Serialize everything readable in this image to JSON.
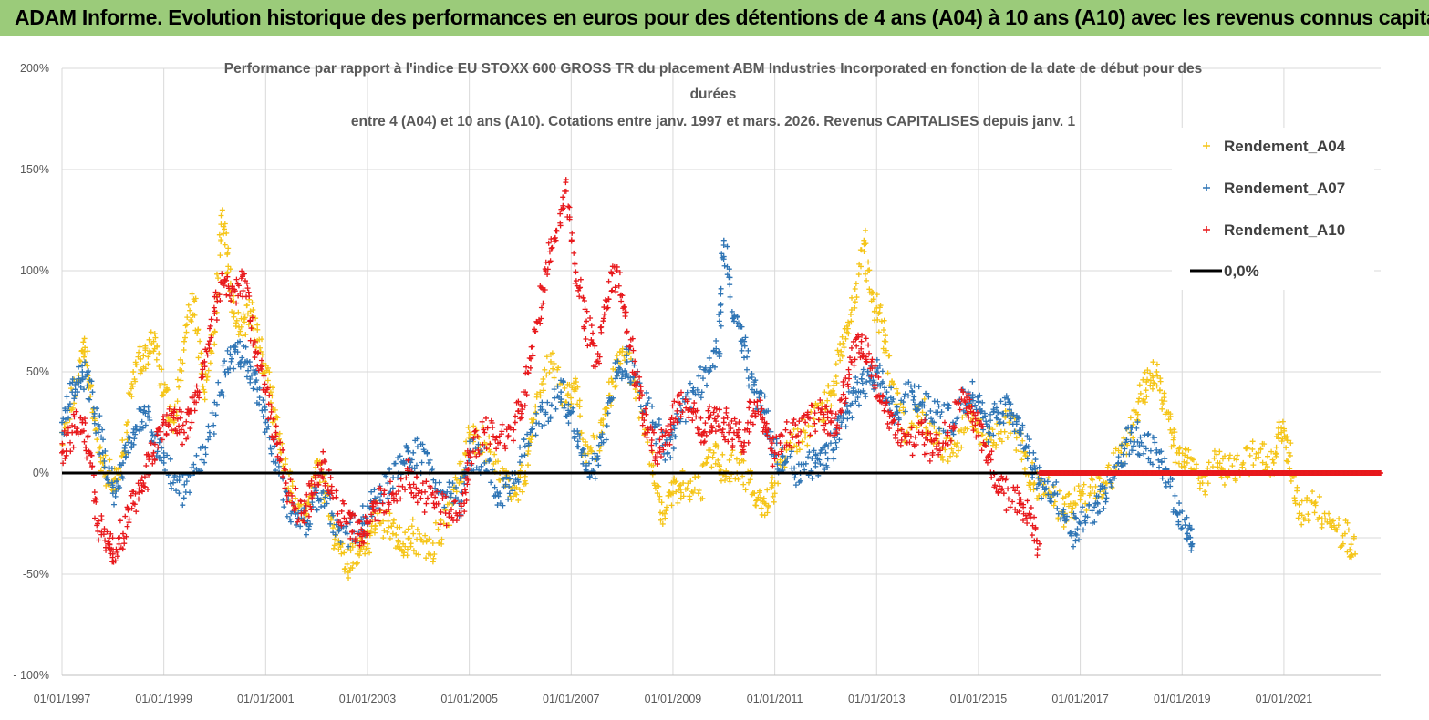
{
  "banner": {
    "text": "ADAM Informe. Evolution historique des performances en euros pour des détentions de 4 ans (A04) à 10 ans (A10) avec les revenus connus capitalisés"
  },
  "chart_data": {
    "type": "scatter",
    "title_lines": [
      "Performance par rapport à l'indice EU STOXX 600 GROSS TR  du placement ABM Industries Incorporated en fonction de la date de début pour des",
      "durées",
      "entre 4 (A04) et 10 ans (A10).  Cotations entre janv. 1997 et mars. 2026. Revenus CAPITALISES depuis janv. 1"
    ],
    "xlabel": "",
    "ylabel": "",
    "xlim": [
      1997.0,
      2022.9
    ],
    "ylim": [
      -100,
      200
    ],
    "y_ticks": [
      200,
      150,
      100,
      50,
      0,
      -50,
      -100
    ],
    "y_tick_labels": [
      "200%",
      "150%",
      "100%",
      "50%",
      "0%",
      "-50%",
      "- 100%"
    ],
    "x_ticks": [
      1997,
      1999,
      2001,
      2003,
      2005,
      2007,
      2009,
      2011,
      2013,
      2015,
      2017,
      2019,
      2021
    ],
    "x_tick_labels": [
      "01/01/1997",
      "01/01/1999",
      "01/01/2001",
      "01/01/2003",
      "01/01/2005",
      "01/01/2007",
      "01/01/2009",
      "01/01/2011",
      "01/01/2013",
      "01/01/2015",
      "01/01/2017",
      "01/01/2019",
      "01/01/2021"
    ],
    "legend_position": "top-right",
    "reference_line": {
      "name": "0,0%",
      "value": 0,
      "color": "#000000"
    },
    "series": [
      {
        "name": "Rendement_A04",
        "color": "#F5C518",
        "points": [
          [
            1997.0,
            20
          ],
          [
            1997.3,
            45
          ],
          [
            1997.45,
            62
          ],
          [
            1997.6,
            30
          ],
          [
            1997.8,
            5
          ],
          [
            1998.0,
            -5
          ],
          [
            1998.2,
            10
          ],
          [
            1998.4,
            50
          ],
          [
            1998.6,
            58
          ],
          [
            1998.8,
            65
          ],
          [
            1999.0,
            40
          ],
          [
            1999.2,
            25
          ],
          [
            1999.4,
            65
          ],
          [
            1999.6,
            85
          ],
          [
            1999.8,
            40
          ],
          [
            2000.0,
            70
          ],
          [
            2000.15,
            130
          ],
          [
            2000.3,
            90
          ],
          [
            2000.5,
            70
          ],
          [
            2000.7,
            80
          ],
          [
            2000.9,
            60
          ],
          [
            2001.1,
            40
          ],
          [
            2001.3,
            10
          ],
          [
            2001.5,
            -10
          ],
          [
            2001.8,
            -20
          ],
          [
            2002.0,
            5
          ],
          [
            2002.2,
            -10
          ],
          [
            2002.4,
            -35
          ],
          [
            2002.6,
            -45
          ],
          [
            2002.8,
            -40
          ],
          [
            2003.0,
            -35
          ],
          [
            2003.2,
            -20
          ],
          [
            2003.5,
            -30
          ],
          [
            2003.7,
            -35
          ],
          [
            2003.9,
            -30
          ],
          [
            2004.2,
            -40
          ],
          [
            2004.5,
            -25
          ],
          [
            2004.8,
            -5
          ],
          [
            2005.0,
            20
          ],
          [
            2005.3,
            15
          ],
          [
            2005.6,
            0
          ],
          [
            2005.9,
            -10
          ],
          [
            2006.1,
            0
          ],
          [
            2006.3,
            30
          ],
          [
            2006.6,
            55
          ],
          [
            2006.9,
            35
          ],
          [
            2007.1,
            45
          ],
          [
            2007.3,
            5
          ],
          [
            2007.6,
            20
          ],
          [
            2007.8,
            45
          ],
          [
            2008.0,
            60
          ],
          [
            2008.3,
            40
          ],
          [
            2008.6,
            0
          ],
          [
            2008.8,
            -20
          ],
          [
            2009.0,
            -10
          ],
          [
            2009.2,
            -5
          ],
          [
            2009.5,
            -10
          ],
          [
            2009.8,
            10
          ],
          [
            2010.0,
            0
          ],
          [
            2010.3,
            5
          ],
          [
            2010.6,
            -10
          ],
          [
            2010.8,
            -15
          ],
          [
            2011.0,
            -5
          ],
          [
            2011.3,
            15
          ],
          [
            2011.6,
            20
          ],
          [
            2011.9,
            30
          ],
          [
            2012.1,
            40
          ],
          [
            2012.3,
            60
          ],
          [
            2012.5,
            75
          ],
          [
            2012.75,
            115
          ],
          [
            2012.9,
            85
          ],
          [
            2013.1,
            75
          ],
          [
            2013.3,
            45
          ],
          [
            2013.6,
            20
          ],
          [
            2013.9,
            30
          ],
          [
            2014.2,
            15
          ],
          [
            2014.5,
            10
          ],
          [
            2014.8,
            30
          ],
          [
            2015.0,
            20
          ],
          [
            2015.3,
            15
          ],
          [
            2015.6,
            25
          ],
          [
            2015.9,
            10
          ],
          [
            2016.1,
            -5
          ],
          [
            2016.4,
            -10
          ],
          [
            2016.7,
            -20
          ],
          [
            2016.9,
            -15
          ],
          [
            2017.2,
            -10
          ],
          [
            2017.5,
            -5
          ],
          [
            2017.8,
            10
          ],
          [
            2018.1,
            30
          ],
          [
            2018.3,
            45
          ],
          [
            2018.5,
            50
          ],
          [
            2018.7,
            30
          ],
          [
            2018.9,
            10
          ],
          [
            2019.1,
            5
          ],
          [
            2019.4,
            -5
          ],
          [
            2019.7,
            5
          ],
          [
            2019.9,
            0
          ],
          [
            2020.2,
            5
          ],
          [
            2020.5,
            10
          ],
          [
            2020.8,
            5
          ],
          [
            2020.95,
            20
          ],
          [
            2021.1,
            10
          ],
          [
            2021.3,
            -20
          ],
          [
            2021.6,
            -15
          ],
          [
            2021.9,
            -25
          ],
          [
            2022.2,
            -30
          ],
          [
            2022.4,
            -40
          ]
        ]
      },
      {
        "name": "Rendement_A07",
        "color": "#2F75B5",
        "points": [
          [
            1997.0,
            25
          ],
          [
            1997.2,
            40
          ],
          [
            1997.4,
            50
          ],
          [
            1997.6,
            40
          ],
          [
            1997.8,
            10
          ],
          [
            1998.0,
            -10
          ],
          [
            1998.2,
            5
          ],
          [
            1998.4,
            20
          ],
          [
            1998.6,
            30
          ],
          [
            1998.8,
            15
          ],
          [
            1999.0,
            5
          ],
          [
            1999.3,
            -10
          ],
          [
            1999.6,
            0
          ],
          [
            1999.9,
            20
          ],
          [
            2000.2,
            50
          ],
          [
            2000.4,
            60
          ],
          [
            2000.6,
            55
          ],
          [
            2000.8,
            45
          ],
          [
            2001.0,
            25
          ],
          [
            2001.2,
            5
          ],
          [
            2001.5,
            -20
          ],
          [
            2001.8,
            -25
          ],
          [
            2002.0,
            -10
          ],
          [
            2002.3,
            -20
          ],
          [
            2002.6,
            -30
          ],
          [
            2002.9,
            -25
          ],
          [
            2003.1,
            -15
          ],
          [
            2003.4,
            -5
          ],
          [
            2003.7,
            5
          ],
          [
            2003.9,
            10
          ],
          [
            2004.2,
            5
          ],
          [
            2004.5,
            -10
          ],
          [
            2004.8,
            -15
          ],
          [
            2005.0,
            10
          ],
          [
            2005.3,
            5
          ],
          [
            2005.6,
            -10
          ],
          [
            2005.9,
            0
          ],
          [
            2006.2,
            20
          ],
          [
            2006.5,
            30
          ],
          [
            2006.8,
            40
          ],
          [
            2007.0,
            30
          ],
          [
            2007.2,
            10
          ],
          [
            2007.4,
            0
          ],
          [
            2007.6,
            15
          ],
          [
            2007.9,
            50
          ],
          [
            2008.1,
            55
          ],
          [
            2008.3,
            45
          ],
          [
            2008.6,
            25
          ],
          [
            2008.9,
            10
          ],
          [
            2009.1,
            25
          ],
          [
            2009.4,
            40
          ],
          [
            2009.7,
            50
          ],
          [
            2009.9,
            60
          ],
          [
            2010.0,
            115
          ],
          [
            2010.2,
            75
          ],
          [
            2010.4,
            65
          ],
          [
            2010.6,
            40
          ],
          [
            2010.8,
            30
          ],
          [
            2011.0,
            10
          ],
          [
            2011.2,
            5
          ],
          [
            2011.5,
            0
          ],
          [
            2011.8,
            5
          ],
          [
            2012.0,
            10
          ],
          [
            2012.2,
            15
          ],
          [
            2012.4,
            30
          ],
          [
            2012.6,
            40
          ],
          [
            2012.8,
            45
          ],
          [
            2013.0,
            50
          ],
          [
            2013.2,
            40
          ],
          [
            2013.4,
            30
          ],
          [
            2013.7,
            40
          ],
          [
            2013.9,
            35
          ],
          [
            2014.2,
            30
          ],
          [
            2014.5,
            25
          ],
          [
            2014.8,
            40
          ],
          [
            2015.0,
            35
          ],
          [
            2015.2,
            20
          ],
          [
            2015.4,
            30
          ],
          [
            2015.6,
            35
          ],
          [
            2015.8,
            20
          ],
          [
            2016.0,
            10
          ],
          [
            2016.2,
            -5
          ],
          [
            2016.5,
            -10
          ],
          [
            2016.8,
            -30
          ],
          [
            2017.0,
            -25
          ],
          [
            2017.3,
            -15
          ],
          [
            2017.5,
            -10
          ],
          [
            2017.8,
            5
          ],
          [
            2018.0,
            20
          ],
          [
            2018.2,
            15
          ],
          [
            2018.5,
            10
          ],
          [
            2018.7,
            0
          ],
          [
            2018.9,
            -20
          ],
          [
            2019.1,
            -30
          ],
          [
            2019.2,
            -35
          ]
        ]
      },
      {
        "name": "Rendement_A10",
        "color": "#E8191C",
        "points": [
          [
            1997.0,
            10
          ],
          [
            1997.2,
            20
          ],
          [
            1997.4,
            25
          ],
          [
            1997.55,
            10
          ],
          [
            1997.7,
            -25
          ],
          [
            1997.9,
            -35
          ],
          [
            1998.0,
            -40
          ],
          [
            1998.2,
            -30
          ],
          [
            1998.4,
            -15
          ],
          [
            1998.6,
            -5
          ],
          [
            1998.8,
            10
          ],
          [
            1999.0,
            25
          ],
          [
            1999.2,
            30
          ],
          [
            1999.4,
            20
          ],
          [
            1999.6,
            35
          ],
          [
            1999.8,
            55
          ],
          [
            2000.0,
            80
          ],
          [
            2000.2,
            95
          ],
          [
            2000.4,
            90
          ],
          [
            2000.6,
            95
          ],
          [
            2000.8,
            60
          ],
          [
            2001.0,
            40
          ],
          [
            2001.2,
            20
          ],
          [
            2001.4,
            -5
          ],
          [
            2001.7,
            -20
          ],
          [
            2001.9,
            -10
          ],
          [
            2002.1,
            5
          ],
          [
            2002.3,
            -10
          ],
          [
            2002.6,
            -25
          ],
          [
            2002.8,
            -30
          ],
          [
            2003.0,
            -25
          ],
          [
            2003.2,
            -15
          ],
          [
            2003.5,
            -10
          ],
          [
            2003.8,
            0
          ],
          [
            2004.0,
            -10
          ],
          [
            2004.3,
            -15
          ],
          [
            2004.6,
            -20
          ],
          [
            2004.9,
            -15
          ],
          [
            2005.0,
            10
          ],
          [
            2005.3,
            20
          ],
          [
            2005.6,
            15
          ],
          [
            2005.9,
            25
          ],
          [
            2006.1,
            40
          ],
          [
            2006.3,
            70
          ],
          [
            2006.5,
            100
          ],
          [
            2006.7,
            115
          ],
          [
            2006.9,
            145
          ],
          [
            2007.1,
            95
          ],
          [
            2007.3,
            75
          ],
          [
            2007.5,
            55
          ],
          [
            2007.7,
            85
          ],
          [
            2007.9,
            100
          ],
          [
            2008.1,
            70
          ],
          [
            2008.3,
            45
          ],
          [
            2008.5,
            20
          ],
          [
            2008.7,
            10
          ],
          [
            2008.9,
            20
          ],
          [
            2009.1,
            35
          ],
          [
            2009.4,
            30
          ],
          [
            2009.6,
            20
          ],
          [
            2009.8,
            30
          ],
          [
            2010.0,
            25
          ],
          [
            2010.2,
            20
          ],
          [
            2010.4,
            15
          ],
          [
            2010.6,
            35
          ],
          [
            2010.8,
            25
          ],
          [
            2011.0,
            10
          ],
          [
            2011.3,
            20
          ],
          [
            2011.6,
            25
          ],
          [
            2011.9,
            30
          ],
          [
            2012.1,
            25
          ],
          [
            2012.3,
            30
          ],
          [
            2012.5,
            55
          ],
          [
            2012.7,
            65
          ],
          [
            2012.9,
            55
          ],
          [
            2013.1,
            35
          ],
          [
            2013.3,
            25
          ],
          [
            2013.6,
            15
          ],
          [
            2013.9,
            20
          ],
          [
            2014.1,
            10
          ],
          [
            2014.4,
            20
          ],
          [
            2014.7,
            40
          ],
          [
            2014.9,
            30
          ],
          [
            2015.1,
            15
          ],
          [
            2015.3,
            0
          ],
          [
            2015.5,
            -10
          ],
          [
            2015.8,
            -15
          ],
          [
            2016.0,
            -20
          ],
          [
            2016.2,
            -35
          ]
        ]
      }
    ]
  }
}
